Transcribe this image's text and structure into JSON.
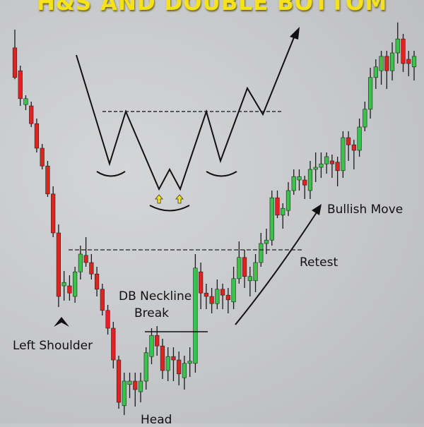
{
  "title": "H&S AND DOUBLE BOTTOM",
  "annotations": {
    "left_shoulder": "Left Shoulder",
    "head": "Head",
    "db_neckline_line1": "DB Neckline",
    "db_neckline_line2": "Break",
    "retest": "Retest",
    "bullish_move": "Bullish Move"
  },
  "colors": {
    "bull": "#3cc24a",
    "bear": "#e0231f",
    "title": "#f6e21a",
    "background": "#c8c9cc"
  },
  "chart_data": {
    "type": "candlestick",
    "title": "H&S AND DOUBLE BOTTOM",
    "xlabel": "",
    "ylabel": "",
    "axes_visible": false,
    "grid": false,
    "ylim": [
      0,
      100
    ],
    "candles_ohlc": [
      [
        88.7,
        93,
        81.3,
        81.7
      ],
      [
        83.3,
        84.5,
        75,
        76.7
      ],
      [
        75.3,
        77.5,
        74,
        76.7
      ],
      [
        75,
        76,
        70,
        70.8
      ],
      [
        70.8,
        72,
        64,
        65
      ],
      [
        65,
        66,
        60,
        60.8
      ],
      [
        60.8,
        62,
        53.5,
        54.2
      ],
      [
        54.2,
        56,
        44,
        45
      ],
      [
        45,
        47,
        27.5,
        30
      ],
      [
        32.5,
        36,
        29,
        33.3
      ],
      [
        32.5,
        35,
        29,
        30.8
      ],
      [
        30,
        37,
        28.5,
        35.8
      ],
      [
        35.8,
        42,
        34,
        40
      ],
      [
        39.7,
        44,
        37,
        38
      ],
      [
        38,
        40,
        34,
        35.3
      ],
      [
        35.3,
        37,
        30,
        31.7
      ],
      [
        31.7,
        33,
        25.5,
        26.7
      ],
      [
        26.7,
        28,
        21,
        22.5
      ],
      [
        22.5,
        24,
        13,
        15
      ],
      [
        15,
        16,
        3.5,
        5
      ],
      [
        4.2,
        12,
        2,
        10
      ],
      [
        9.2,
        12,
        6,
        10
      ],
      [
        10,
        12,
        4,
        8
      ],
      [
        7.5,
        12,
        5,
        10
      ],
      [
        10,
        18,
        8,
        16.7
      ],
      [
        15.8,
        22.5,
        14,
        20.8
      ],
      [
        20.8,
        23,
        16,
        18.3
      ],
      [
        18.3,
        20,
        10.5,
        12.5
      ],
      [
        12.5,
        18,
        10,
        15.8
      ],
      [
        15.8,
        18,
        10,
        15
      ],
      [
        15,
        17,
        9,
        11.7
      ],
      [
        10.8,
        16,
        8,
        14.2
      ],
      [
        14.2,
        18,
        11,
        14.7
      ],
      [
        14.2,
        40,
        12,
        36.7
      ],
      [
        35.8,
        38,
        27,
        30.8
      ],
      [
        30.8,
        33,
        27,
        30
      ],
      [
        30,
        32,
        26,
        28.3
      ],
      [
        28.3,
        34,
        27,
        31.7
      ],
      [
        31.7,
        33,
        27,
        30.3
      ],
      [
        30.3,
        32,
        26,
        29.2
      ],
      [
        28.7,
        37,
        27,
        34.2
      ],
      [
        34.2,
        43,
        33,
        39.2
      ],
      [
        39.2,
        41,
        32,
        34.7
      ],
      [
        33.7,
        37,
        30,
        34.7
      ],
      [
        33.7,
        40,
        31,
        38
      ],
      [
        38,
        45,
        37,
        42.5
      ],
      [
        42.5,
        46,
        40,
        43.3
      ],
      [
        43.3,
        55,
        42,
        53.3
      ],
      [
        53.3,
        55,
        48.5,
        49.2
      ],
      [
        49.2,
        52,
        46,
        50.8
      ],
      [
        50.3,
        57,
        49,
        55
      ],
      [
        55,
        60,
        54,
        58.3
      ],
      [
        57.5,
        60,
        55,
        58.3
      ],
      [
        57.5,
        58.5,
        53,
        56.3
      ],
      [
        55,
        62,
        53,
        60
      ],
      [
        60,
        64,
        57,
        60.5
      ],
      [
        60.5,
        64,
        58,
        61.3
      ],
      [
        61.3,
        64,
        59,
        63
      ],
      [
        62,
        63.5,
        58,
        61.3
      ],
      [
        61.7,
        63,
        56,
        59.7
      ],
      [
        59.7,
        69,
        58,
        67.5
      ],
      [
        67.5,
        69,
        62,
        65.8
      ],
      [
        65.8,
        67,
        60,
        64.5
      ],
      [
        64.5,
        72,
        63,
        70
      ],
      [
        70,
        76,
        69,
        74.2
      ],
      [
        74.2,
        84,
        72,
        81.7
      ],
      [
        81.7,
        86,
        79,
        84.2
      ],
      [
        83.3,
        88,
        80,
        86.7
      ],
      [
        86.7,
        88,
        79,
        83.3
      ],
      [
        83.3,
        90,
        81,
        87.5
      ],
      [
        87.5,
        94.7,
        85,
        90.8
      ],
      [
        90.8,
        92,
        83,
        85
      ],
      [
        86,
        88,
        82,
        85
      ],
      [
        84.2,
        88,
        81,
        86.7
      ]
    ]
  }
}
